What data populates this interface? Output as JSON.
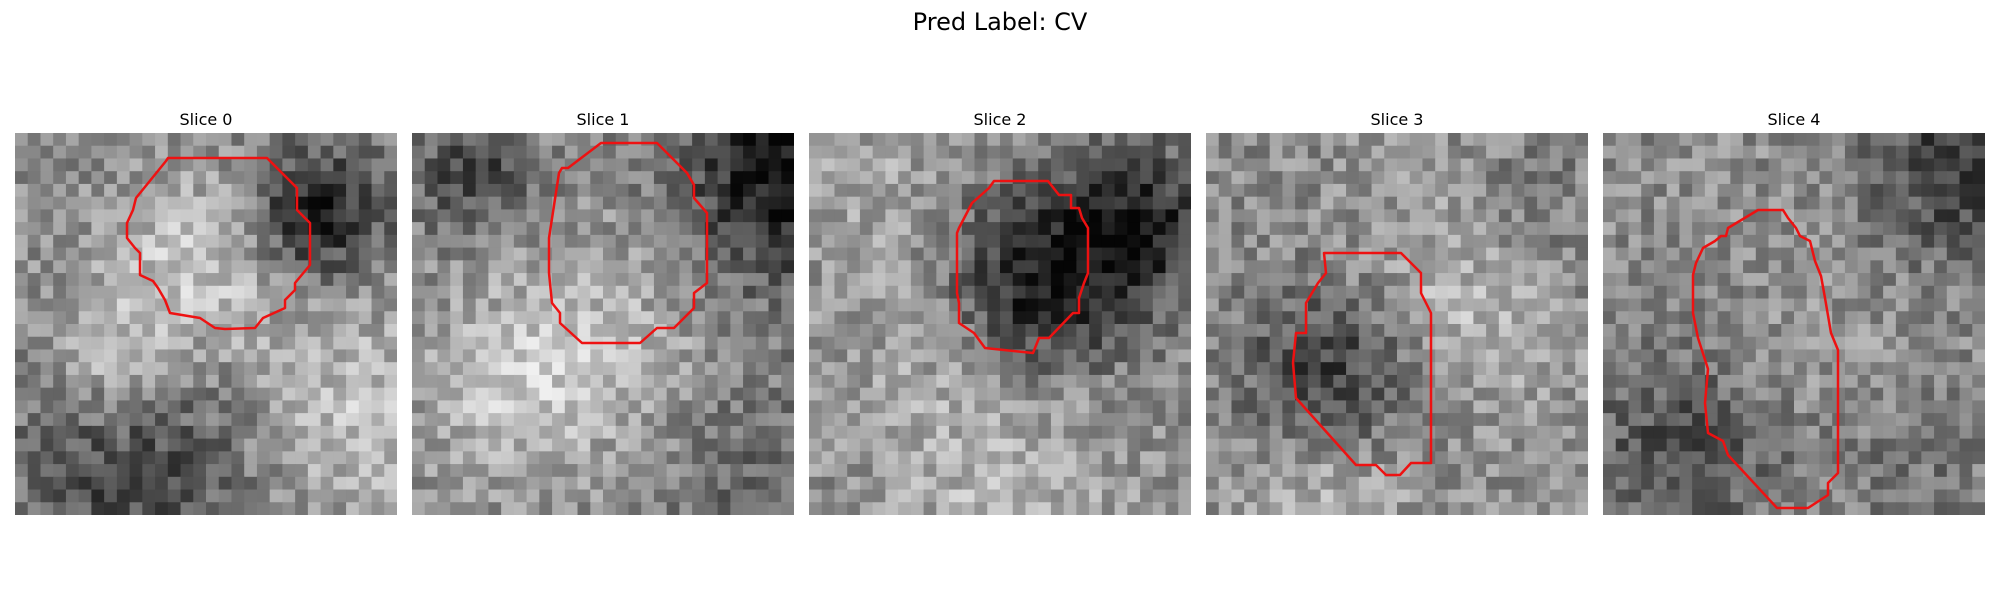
{
  "figure": {
    "title": "Pred Label: CV",
    "contour_color": "#ee1111"
  },
  "slices": [
    {
      "label": "Slice 0"
    },
    {
      "label": "Slice 1"
    },
    {
      "label": "Slice 2"
    },
    {
      "label": "Slice 3"
    },
    {
      "label": "Slice 4"
    }
  ]
}
